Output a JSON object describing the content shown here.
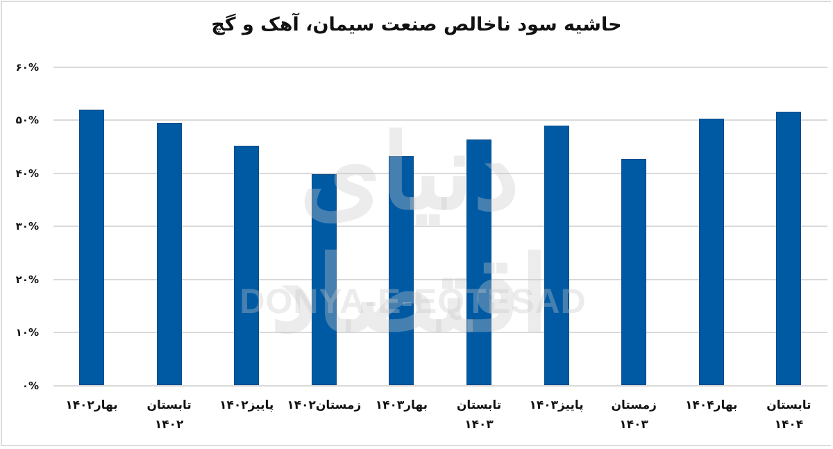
{
  "chart_data": {
    "type": "bar",
    "title": "حاشیه سود ناخالص صنعت سیمان، آهک و گچ",
    "xlabel": "",
    "ylabel": "",
    "ylim": [
      0,
      60
    ],
    "yticks": [
      "۰%",
      "۱۰%",
      "۲۰%",
      "۳۰%",
      "۴۰%",
      "۵۰%",
      "۶۰%"
    ],
    "ytick_values": [
      0,
      10,
      20,
      30,
      40,
      50,
      60
    ],
    "grid": true,
    "legend": null,
    "bar_color": "#005aa3",
    "categories": [
      "بهار ۱۴۰۲",
      "تابستان ۱۴۰۲",
      "پاییز ۱۴۰۲",
      "زمستان ۱۴۰۲",
      "بهار ۱۴۰۳",
      "تابستان ۱۴۰۳",
      "پاییز ۱۴۰۳",
      "زمستان ۱۴۰۳",
      "بهار ۱۴۰۴",
      "تابستان ۱۴۰۴"
    ],
    "values": [
      51.9,
      49.5,
      45.2,
      39.8,
      43.2,
      46.3,
      48.9,
      42.7,
      50.3,
      51.6
    ],
    "unit": "%"
  },
  "labels": {
    "x": [
      {
        "l1": "بهار۱۴۰۲",
        "l2": ""
      },
      {
        "l1": "تابستان",
        "l2": "۱۴۰۲"
      },
      {
        "l1": "پاییز۱۴۰۲",
        "l2": ""
      },
      {
        "l1": "زمستان۱۴۰۲",
        "l2": ""
      },
      {
        "l1": "بهار۱۴۰۳",
        "l2": ""
      },
      {
        "l1": "تابستان",
        "l2": "۱۴۰۳"
      },
      {
        "l1": "پاییز۱۴۰۳",
        "l2": ""
      },
      {
        "l1": "زمستان",
        "l2": "۱۴۰۳"
      },
      {
        "l1": "بهار۱۴۰۴",
        "l2": ""
      },
      {
        "l1": "تابستان",
        "l2": "۱۴۰۴"
      }
    ]
  },
  "watermark": {
    "persian": "دنیای اقتصاد",
    "english": "DONYA-E-EQTESAD"
  }
}
